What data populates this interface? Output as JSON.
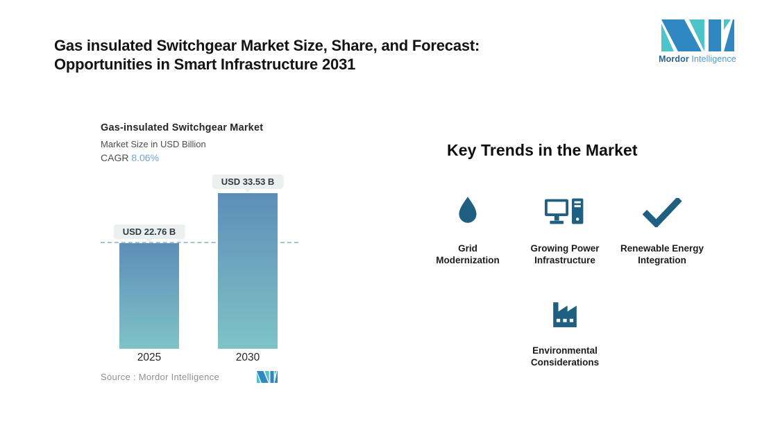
{
  "header": {
    "title_line1": "Gas insulated Switchgear Market Size, Share, and Forecast:",
    "title_line2": "Opportunities in Smart Infrastructure 2031"
  },
  "brand": {
    "name_primary": "Mordor",
    "name_secondary": "Intelligence",
    "teal": "#4cc4ca",
    "blue": "#2f88c1"
  },
  "chart_data": {
    "type": "bar",
    "title": "Gas-insulated Switchgear Market",
    "subtitle": "Market Size in USD Billion",
    "cagr_label": "CAGR",
    "cagr_value": "8.06%",
    "categories": [
      "2025",
      "2030"
    ],
    "values": [
      22.76,
      33.53
    ],
    "value_labels": [
      "USD 22.76 B",
      "USD 33.53 B"
    ],
    "unit": "USD Billion",
    "ylim": [
      0,
      33.53
    ],
    "grid": false,
    "legend": "none",
    "reference_line": {
      "at_value": 22.76,
      "style": "dashed",
      "color": "#a7c1d8"
    },
    "gradient_top": "#5d8eb8",
    "gradient_bottom": "#7fc3c7",
    "source": "Source :  Mordor Intelligence"
  },
  "trends": {
    "heading": "Key Trends in the Market",
    "icon_color": "#1e5f82",
    "items": [
      {
        "icon": "water-drop-icon",
        "label_line1": "Grid",
        "label_line2": "Modernization"
      },
      {
        "icon": "desktop-computer-icon",
        "label_line1": "Growing Power",
        "label_line2": "Infrastructure"
      },
      {
        "icon": "checkmark-icon",
        "label_line1": "Renewable Energy",
        "label_line2": "Integration"
      },
      {
        "icon": "factory-icon",
        "label_line1": "Environmental",
        "label_line2": "Considerations"
      }
    ]
  }
}
